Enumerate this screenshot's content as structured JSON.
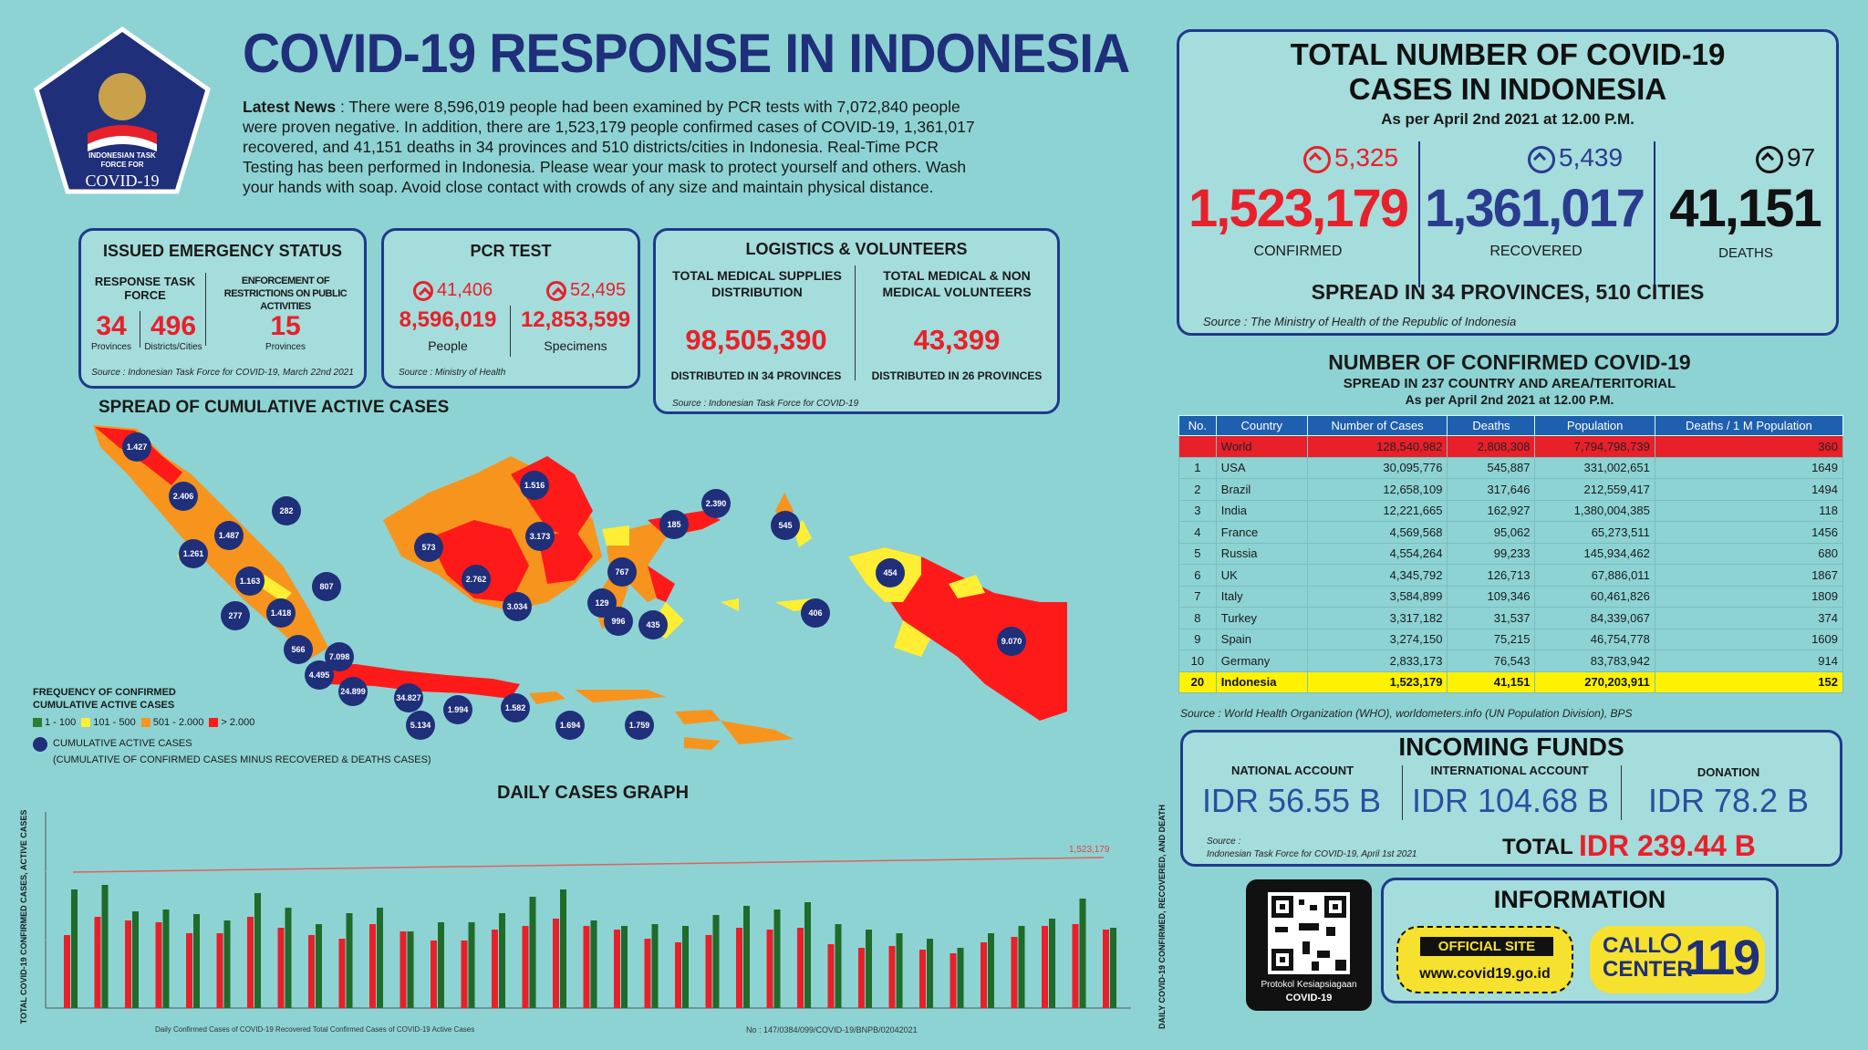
{
  "header": {
    "logo_text": [
      "INDONESIAN TASK",
      "FORCE FOR",
      "COVID-19"
    ],
    "title": "COVID-19 RESPONSE IN INDONESIA",
    "news_label": "Latest News",
    "news_line1": " : There were 8,596,019 people had been examined by PCR tests with 7,072,840 people",
    "news_line2": "were proven negative. In addition, there are 1,523,179 people confirmed cases of COVID-19, 1,361,017",
    "news_line3": "recovered, and 41,151 deaths in 34 provinces and 510 districts/cities in Indonesia. Real-Time PCR",
    "news_line4": "Testing has been performed in Indonesia. Please wear your mask to protect yourself and others. Wash",
    "news_line5": "your hands with soap. Avoid close contact with crowds of any size and maintain physical distance."
  },
  "emergency": {
    "title": "ISSUED EMERGENCY STATUS",
    "col1_label": "RESPONSE TASK FORCE",
    "col2_label": "ENFORCEMENT OF RESTRICTIONS ON PUBLIC ACTIVITIES",
    "provinces_value": "34",
    "provinces_label": "Provinces",
    "districts_value": "496",
    "districts_label": "Districts/Cities",
    "restrict_value": "15",
    "restrict_label": "Provinces",
    "source": "Source : Indonesian Task Force for COVID-19, March 22nd 2021"
  },
  "pcr": {
    "title": "PCR TEST",
    "people_increase": "41,406",
    "specimens_increase": "52,495",
    "people_value": "8,596,019",
    "specimens_value": "12,853,599",
    "people_label": "People",
    "specimens_label": "Specimens",
    "source": "Source : Ministry of Health"
  },
  "logistics": {
    "title": "LOGISTICS & VOLUNTEERS",
    "supplies_label": "TOTAL MEDICAL SUPPLIES DISTRIBUTION",
    "volunteers_label": "TOTAL MEDICAL & NON MEDICAL VOLUNTEERS",
    "supplies_value": "98,505,390",
    "volunteers_value": "43,399",
    "supplies_note": "DISTRIBUTED IN 34 PROVINCES",
    "volunteers_note": "DISTRIBUTED IN 26 PROVINCES",
    "source": "Source : Indonesian Task Force for COVID-19"
  },
  "map": {
    "title": "SPREAD OF CUMULATIVE ACTIVE CASES",
    "legend_title": "FREQUENCY OF CONFIRMED CUMULATIVE ACTIVE CASES",
    "legend_items": [
      {
        "label": "1 - 100",
        "color": "#2e7d32"
      },
      {
        "label": "101 - 500",
        "color": "#ffee33"
      },
      {
        "label": "501 - 2.000",
        "color": "#f7941d"
      },
      {
        "label": "> 2.000",
        "color": "#ff1a1a"
      }
    ],
    "legend_circle_label": "CUMULATIVE ACTIVE CASES",
    "legend_circle_note": "(CUMULATIVE OF CONFIRMED CASES MINUS RECOVERED & DEATHS CASES)",
    "bubbles": [
      "1.427",
      "2.406",
      "1.487",
      "282",
      "1.261",
      "1.163",
      "807",
      "277",
      "1.418",
      "566",
      "7.098",
      "4.495",
      "24.899",
      "34.827",
      "1.994",
      "5.134",
      "1.582",
      "1.694",
      "1.759",
      "573",
      "2.762",
      "3.034",
      "3.173",
      "1.516",
      "185",
      "2.390",
      "545",
      "767",
      "129",
      "996",
      "435",
      "454",
      "406",
      "9.070"
    ]
  },
  "daily": {
    "title": "DAILY CASES GRAPH",
    "y_left_label": "TOTAL COVID-19 CONFIRMED CASES, ACTIVE CASES",
    "y_right_label": "DAILY COVID-19 CONFIRMED, RECOVERED, AND DEATH",
    "line_label": "1,523,179",
    "legend": "Daily Confirmed Cases of COVID-19   Recovered   Total Confirmed Cases of COVID-19   Active Cases",
    "doc_number": "No : 147/0384/099/COVID-19/BNPB/02042021"
  },
  "totals": {
    "title_line1": "TOTAL NUMBER OF COVID-19",
    "title_line2": "CASES IN INDONESIA",
    "as_per": "As per April 2nd 2021 at 12.00 P.M.",
    "confirmed_increase": "5,325",
    "recovered_increase": "5,439",
    "deaths_increase": "97",
    "confirmed": "1,523,179",
    "recovered": "1,361,017",
    "deaths": "41,151",
    "confirmed_label": "CONFIRMED",
    "recovered_label": "RECOVERED",
    "deaths_label": "DEATHS",
    "spread": "SPREAD IN 34 PROVINCES, 510 CITIES",
    "source": "Source : The Ministry of Health of the Republic of Indonesia"
  },
  "world": {
    "title": "NUMBER OF CONFIRMED COVID-19",
    "subtitle": "SPREAD IN 237 COUNTRY AND AREA/TERITORIAL",
    "as_per": "As per April 2nd 2021 at 12.00 P.M.",
    "headers": [
      "No.",
      "Country",
      "Number of Cases",
      "Deaths",
      "Population",
      "Deaths / 1 M Population"
    ],
    "rows": [
      [
        "",
        "World",
        "128,540,982",
        "2,808,308",
        "7,794,798,739",
        "360"
      ],
      [
        "1",
        "USA",
        "30,095,776",
        "545,887",
        "331,002,651",
        "1649"
      ],
      [
        "2",
        "Brazil",
        "12,658,109",
        "317,646",
        "212,559,417",
        "1494"
      ],
      [
        "3",
        "India",
        "12,221,665",
        "162,927",
        "1,380,004,385",
        "118"
      ],
      [
        "4",
        "France",
        "4,569,568",
        "95,062",
        "65,273,511",
        "1456"
      ],
      [
        "5",
        "Russia",
        "4,554,264",
        "99,233",
        "145,934,462",
        "680"
      ],
      [
        "6",
        "UK",
        "4,345,792",
        "126,713",
        "67,886,011",
        "1867"
      ],
      [
        "7",
        "Italy",
        "3,584,899",
        "109,346",
        "60,461,826",
        "1809"
      ],
      [
        "8",
        "Turkey",
        "3,317,182",
        "31,537",
        "84,339,067",
        "374"
      ],
      [
        "9",
        "Spain",
        "3,274,150",
        "75,215",
        "46,754,778",
        "1609"
      ],
      [
        "10",
        "Germany",
        "2,833,173",
        "76,543",
        "83,783,942",
        "914"
      ],
      [
        "20",
        "Indonesia",
        "1,523,179",
        "41,151",
        "270,203,911",
        "152"
      ]
    ],
    "source": "Source : World Health Organization (WHO), worldometers.info (UN Population Division), BPS"
  },
  "funds": {
    "title": "INCOMING FUNDS",
    "national_label": "NATIONAL ACCOUNT",
    "international_label": "INTERNATIONAL ACCOUNT",
    "donation_label": "DONATION",
    "national": "IDR 56.55 B",
    "international": "IDR 104.68 B",
    "donation": "IDR 78.2 B",
    "total_label": "TOTAL",
    "total": "IDR 239.44 B",
    "source_label": "Source :",
    "source": "Indonesian Task Force for COVID-19, April 1st 2021"
  },
  "info": {
    "qr_caption1": "Protokol Kesiapsiagaan",
    "qr_caption2": "COVID-19",
    "title": "INFORMATION",
    "official_site": "OFFICIAL SITE",
    "site_url": "www.covid19.go.id",
    "call": "CALL",
    "center": "CENTER",
    "number": "119"
  }
}
